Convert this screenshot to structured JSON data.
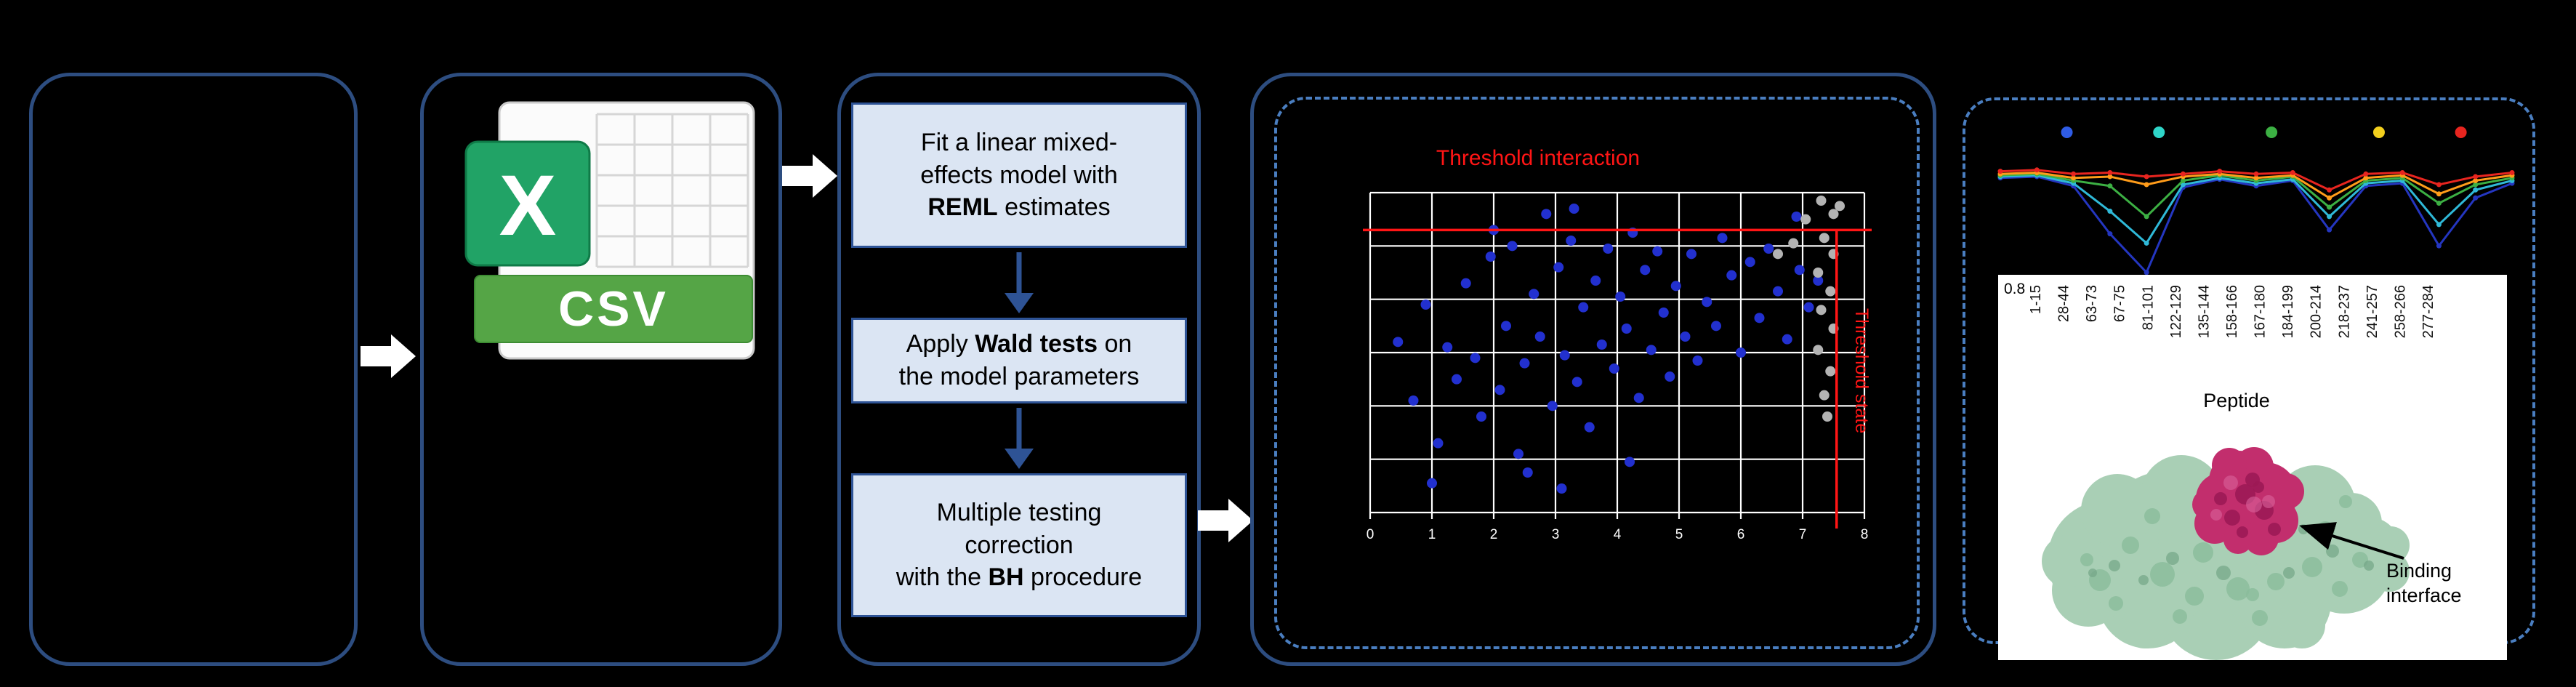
{
  "csv_panel": {
    "logo_letter": "X",
    "banner_label": "CSV"
  },
  "flow": {
    "steps": [
      {
        "segments": [
          {
            "text": "Fit a linear mixed-"
          },
          {
            "break": true
          },
          {
            "text": "effects model with"
          },
          {
            "break": true
          },
          {
            "text": "REML",
            "bold": true
          },
          {
            "text": " estimates"
          }
        ]
      },
      {
        "segments": [
          {
            "text": "Apply "
          },
          {
            "text": "Wald tests",
            "bold": true
          },
          {
            "text": " on"
          },
          {
            "break": true
          },
          {
            "text": "the model parameters"
          }
        ]
      },
      {
        "segments": [
          {
            "text": "Multiple testing"
          },
          {
            "break": true
          },
          {
            "text": "correction"
          },
          {
            "break": true
          },
          {
            "text": "with the "
          },
          {
            "text": "BH",
            "bold": true
          },
          {
            "text": " procedure"
          }
        ]
      }
    ]
  },
  "chart_data": [
    {
      "type": "scatter",
      "title": "Threshold interaction",
      "right_label": "Threshold state",
      "xlim": [
        0,
        8
      ],
      "ylim": [
        0,
        6
      ],
      "xticks": [
        0,
        1,
        2,
        3,
        4,
        5,
        6,
        7,
        8
      ],
      "grid": true,
      "threshold_x": 7.55,
      "threshold_y": 5.3,
      "threshold_color": "#ff1515",
      "series": [
        {
          "name": "significant-peptides",
          "color": "#2230cf",
          "points": [
            [
              0.45,
              3.2
            ],
            [
              0.7,
              2.1
            ],
            [
              0.9,
              3.9
            ],
            [
              1.1,
              1.3
            ],
            [
              1.25,
              3.1
            ],
            [
              1.4,
              2.5
            ],
            [
              1.55,
              4.3
            ],
            [
              1.7,
              2.9
            ],
            [
              1.8,
              1.8
            ],
            [
              1.95,
              4.8
            ],
            [
              2.1,
              2.3
            ],
            [
              2.2,
              3.5
            ],
            [
              2.3,
              5.0
            ],
            [
              2.4,
              1.1
            ],
            [
              2.5,
              2.8
            ],
            [
              2.65,
              4.1
            ],
            [
              2.75,
              3.3
            ],
            [
              2.85,
              5.6
            ],
            [
              2.95,
              2.0
            ],
            [
              3.05,
              4.6
            ],
            [
              3.15,
              2.95
            ],
            [
              3.25,
              5.1
            ],
            [
              3.35,
              2.45
            ],
            [
              3.45,
              3.85
            ],
            [
              3.55,
              1.6
            ],
            [
              3.65,
              4.35
            ],
            [
              3.75,
              3.15
            ],
            [
              3.85,
              4.95
            ],
            [
              3.95,
              2.7
            ],
            [
              4.05,
              4.05
            ],
            [
              4.15,
              3.45
            ],
            [
              4.25,
              5.25
            ],
            [
              4.35,
              2.15
            ],
            [
              4.45,
              4.55
            ],
            [
              4.55,
              3.05
            ],
            [
              4.65,
              4.9
            ],
            [
              4.75,
              3.75
            ],
            [
              4.85,
              2.55
            ],
            [
              4.95,
              4.25
            ],
            [
              5.1,
              3.3
            ],
            [
              5.2,
              4.85
            ],
            [
              5.3,
              2.85
            ],
            [
              5.45,
              3.95
            ],
            [
              5.6,
              3.5
            ],
            [
              5.7,
              5.15
            ],
            [
              5.85,
              4.45
            ],
            [
              6.0,
              3.0
            ],
            [
              6.15,
              4.7
            ],
            [
              6.3,
              3.65
            ],
            [
              6.45,
              4.95
            ],
            [
              6.6,
              4.15
            ],
            [
              6.75,
              3.25
            ],
            [
              6.95,
              4.55
            ],
            [
              7.1,
              3.85
            ],
            [
              7.25,
              4.35
            ],
            [
              1.0,
              0.55
            ],
            [
              2.55,
              0.75
            ],
            [
              3.1,
              0.45
            ],
            [
              4.2,
              0.95
            ],
            [
              3.3,
              5.7
            ],
            [
              6.9,
              5.55
            ],
            [
              2.0,
              5.3
            ]
          ]
        },
        {
          "name": "filtered-peptides",
          "color": "#b3b3b3",
          "points": [
            [
              7.3,
              5.85
            ],
            [
              7.5,
              5.6
            ],
            [
              7.35,
              5.15
            ],
            [
              7.5,
              4.85
            ],
            [
              7.25,
              4.5
            ],
            [
              7.45,
              4.15
            ],
            [
              7.3,
              3.8
            ],
            [
              7.5,
              3.45
            ],
            [
              7.25,
              3.05
            ],
            [
              7.45,
              2.65
            ],
            [
              7.35,
              2.2
            ],
            [
              6.85,
              5.05
            ],
            [
              6.6,
              4.85
            ],
            [
              7.05,
              5.5
            ],
            [
              7.6,
              5.75
            ],
            [
              7.4,
              1.8
            ]
          ]
        }
      ]
    },
    {
      "type": "line",
      "categories": [
        "1-15",
        "28-44",
        "63-73",
        "67-75",
        "81-101",
        "122-129",
        "135-144",
        "158-166",
        "167-180",
        "184-199",
        "200-214",
        "218-237",
        "241-257",
        "258-266",
        "277-284"
      ],
      "xlabel": "Peptide",
      "ylim": [
        0,
        1
      ],
      "ytick_label": "0.8",
      "legend_dot_colors": [
        "#2f5ce6",
        "#2fd5c8",
        "#3cb043",
        "#f2cf1d",
        "#e8251f"
      ],
      "series": [
        {
          "name": "condition-blue",
          "color": "#2436c0",
          "values": [
            0.87,
            0.88,
            0.81,
            0.45,
            0.16,
            0.8,
            0.86,
            0.81,
            0.85,
            0.48,
            0.81,
            0.83,
            0.36,
            0.72,
            0.83
          ]
        },
        {
          "name": "condition-cyan",
          "color": "#2fb9d8",
          "values": [
            0.88,
            0.89,
            0.83,
            0.62,
            0.38,
            0.82,
            0.87,
            0.83,
            0.86,
            0.58,
            0.83,
            0.85,
            0.52,
            0.78,
            0.85
          ]
        },
        {
          "name": "condition-green",
          "color": "#3cb043",
          "values": [
            0.89,
            0.9,
            0.85,
            0.81,
            0.58,
            0.85,
            0.89,
            0.85,
            0.88,
            0.65,
            0.85,
            0.87,
            0.68,
            0.82,
            0.87
          ]
        },
        {
          "name": "condition-orange",
          "color": "#ff9c1a",
          "values": [
            0.9,
            0.91,
            0.87,
            0.88,
            0.82,
            0.88,
            0.9,
            0.87,
            0.89,
            0.72,
            0.87,
            0.89,
            0.75,
            0.85,
            0.89
          ]
        },
        {
          "name": "condition-red",
          "color": "#e8251f",
          "values": [
            0.92,
            0.93,
            0.9,
            0.91,
            0.88,
            0.9,
            0.92,
            0.9,
            0.91,
            0.78,
            0.9,
            0.91,
            0.82,
            0.88,
            0.91
          ]
        }
      ]
    }
  ],
  "protein": {
    "caption_lines": [
      "Binding",
      "interface"
    ],
    "body_color": "#a9cfb5",
    "interface_color": "#c22e6d"
  },
  "colors": {
    "background": "#000000",
    "panel_border": "#2d4d80",
    "dashed_border": "#4a7ec0",
    "flow_box_fill": "#dbe5f3",
    "flow_box_border": "#2e5395",
    "flow_arrow": "#2e5395",
    "white_arrow": "#ffffff",
    "csv_green": "#55a546",
    "excel_green": "#21a366"
  }
}
